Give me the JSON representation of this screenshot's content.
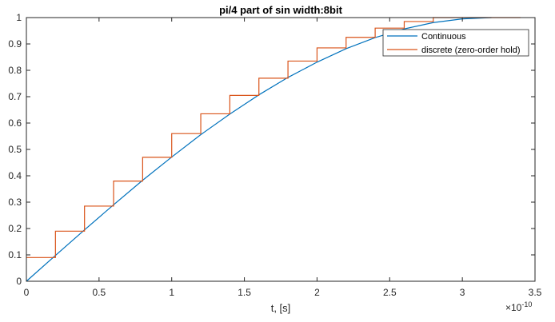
{
  "chart_data": {
    "type": "line",
    "title": "pi/4 part of sin width:8bit",
    "xlabel": "t, [s]",
    "ylabel": "",
    "x_exponent_label": "×10",
    "x_exponent_power": "-10",
    "xlim": [
      0,
      3.5
    ],
    "ylim": [
      0,
      1
    ],
    "x_scale": 1e-10,
    "x_ticks": [
      0,
      0.5,
      1,
      1.5,
      2,
      2.5,
      3,
      3.5
    ],
    "x_tick_labels": [
      "0",
      "0.5",
      "1",
      "1.5",
      "2",
      "2.5",
      "3",
      "3.5"
    ],
    "y_ticks": [
      0,
      0.1,
      0.2,
      0.3,
      0.4,
      0.5,
      0.6,
      0.7,
      0.8,
      0.9,
      1
    ],
    "y_tick_labels": [
      "0",
      "0.1",
      "0.2",
      "0.3",
      "0.4",
      "0.5",
      "0.6",
      "0.7",
      "0.8",
      "0.9",
      "1"
    ],
    "grid": false,
    "legend_position": "top-right",
    "series": [
      {
        "name": "Continuous",
        "style": "line",
        "color": "#0072BD",
        "x": [
          0,
          0.2,
          0.4,
          0.6,
          0.8,
          1.0,
          1.2,
          1.4,
          1.6,
          1.8,
          2.0,
          2.2,
          2.4,
          2.6,
          2.8,
          3.0,
          3.2
        ],
        "y": [
          0,
          0.098,
          0.195,
          0.29,
          0.383,
          0.471,
          0.556,
          0.634,
          0.707,
          0.773,
          0.831,
          0.882,
          0.924,
          0.957,
          0.981,
          0.995,
          1.0
        ]
      },
      {
        "name": "discrete (zero-order hold)",
        "style": "step",
        "color": "#D95319",
        "x": [
          0,
          0.2,
          0.4,
          0.6,
          0.8,
          1.0,
          1.2,
          1.4,
          1.6,
          1.8,
          2.0,
          2.2,
          2.4,
          2.6,
          2.8,
          3.0,
          3.2
        ],
        "y": [
          0.09,
          0.19,
          0.285,
          0.38,
          0.47,
          0.56,
          0.635,
          0.705,
          0.77,
          0.835,
          0.885,
          0.925,
          0.96,
          0.985,
          1.0,
          1.0,
          1.0
        ]
      }
    ]
  }
}
